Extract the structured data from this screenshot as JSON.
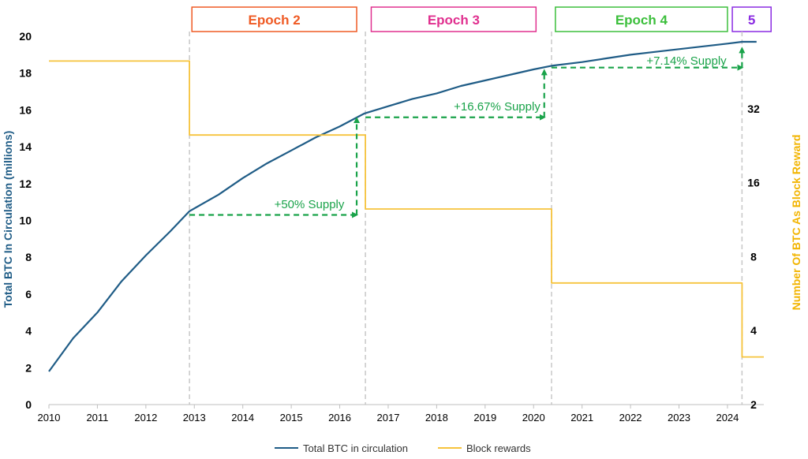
{
  "chart_data": {
    "type": "line",
    "title": "",
    "xlabel": "",
    "ylabel_left": "Total BTC In Circulation (millions)",
    "ylabel_right": "Number Of BTC As Block Reward",
    "xlim": [
      2010,
      2024.75
    ],
    "ylim_left": [
      0,
      20
    ],
    "ylim_right": [
      2,
      64
    ],
    "right_axis_scale": "log2",
    "x_ticks": [
      "2010",
      "2011",
      "2012",
      "2013",
      "2014",
      "2015",
      "2016",
      "2017",
      "2018",
      "2019",
      "2020",
      "2021",
      "2022",
      "2023",
      "2024"
    ],
    "y_ticks_left": [
      "0",
      "2",
      "4",
      "6",
      "8",
      "10",
      "12",
      "14",
      "16",
      "18",
      "20"
    ],
    "y_ticks_right": [
      "2",
      "4",
      "8",
      "16",
      "32"
    ],
    "grid": false,
    "legend_position": "bottom",
    "series": [
      {
        "name": "Total BTC in circulation",
        "axis": "left",
        "color": "#1f5c86",
        "x": [
          2010.0,
          2010.5,
          2011.0,
          2011.5,
          2012.0,
          2012.5,
          2012.9,
          2013.5,
          2014.0,
          2014.5,
          2015.0,
          2015.5,
          2016.0,
          2016.5,
          2017.0,
          2017.5,
          2018.0,
          2018.5,
          2019.0,
          2019.5,
          2020.0,
          2020.37,
          2021.0,
          2021.5,
          2022.0,
          2022.5,
          2023.0,
          2023.5,
          2024.0,
          2024.3,
          2024.6
        ],
        "values": [
          1.8,
          3.6,
          5.0,
          6.7,
          8.1,
          9.4,
          10.5,
          11.4,
          12.3,
          13.1,
          13.8,
          14.5,
          15.1,
          15.8,
          16.2,
          16.6,
          16.9,
          17.3,
          17.6,
          17.9,
          18.2,
          18.4,
          18.6,
          18.8,
          19.0,
          19.15,
          19.3,
          19.45,
          19.6,
          19.7,
          19.7
        ]
      },
      {
        "name": "Block rewards",
        "axis": "right",
        "color": "#f6c33c",
        "x": [
          2010.0,
          2012.9,
          2012.9,
          2016.53,
          2016.53,
          2020.37,
          2020.37,
          2024.3,
          2024.3,
          2024.75
        ],
        "values": [
          50,
          50,
          25,
          25,
          12.5,
          12.5,
          6.25,
          6.25,
          3.125,
          3.125
        ]
      }
    ],
    "halving_years": [
      2012.9,
      2016.53,
      2020.37,
      2024.3
    ],
    "epochs": [
      {
        "label": "Epoch 2",
        "x_start": 2012.95,
        "x_end": 2016.35,
        "color": "#ef5a24"
      },
      {
        "label": "Epoch 3",
        "x_start": 2016.65,
        "x_end": 2020.05,
        "color": "#e0308f"
      },
      {
        "label": "Epoch 4",
        "x_start": 2020.45,
        "x_end": 2024.0,
        "color": "#3cbf3c"
      },
      {
        "label": "5",
        "x_start": 2024.1,
        "x_end": 2024.9,
        "color": "#8a2be2"
      }
    ],
    "annotations": [
      {
        "text": "+50% Supply",
        "x_from": 2012.9,
        "x_to": 2016.35,
        "y_from": 10.3,
        "y_to": 15.8
      },
      {
        "text": "+16.67% Supply",
        "x_from": 2016.53,
        "x_to": 2020.22,
        "y_from": 15.6,
        "y_to": 18.4
      },
      {
        "text": "+7.14% Supply",
        "x_from": 2020.37,
        "x_to": 2024.3,
        "y_from": 18.3,
        "y_to": 19.6
      }
    ],
    "annotation_color": "#1aa34a"
  }
}
